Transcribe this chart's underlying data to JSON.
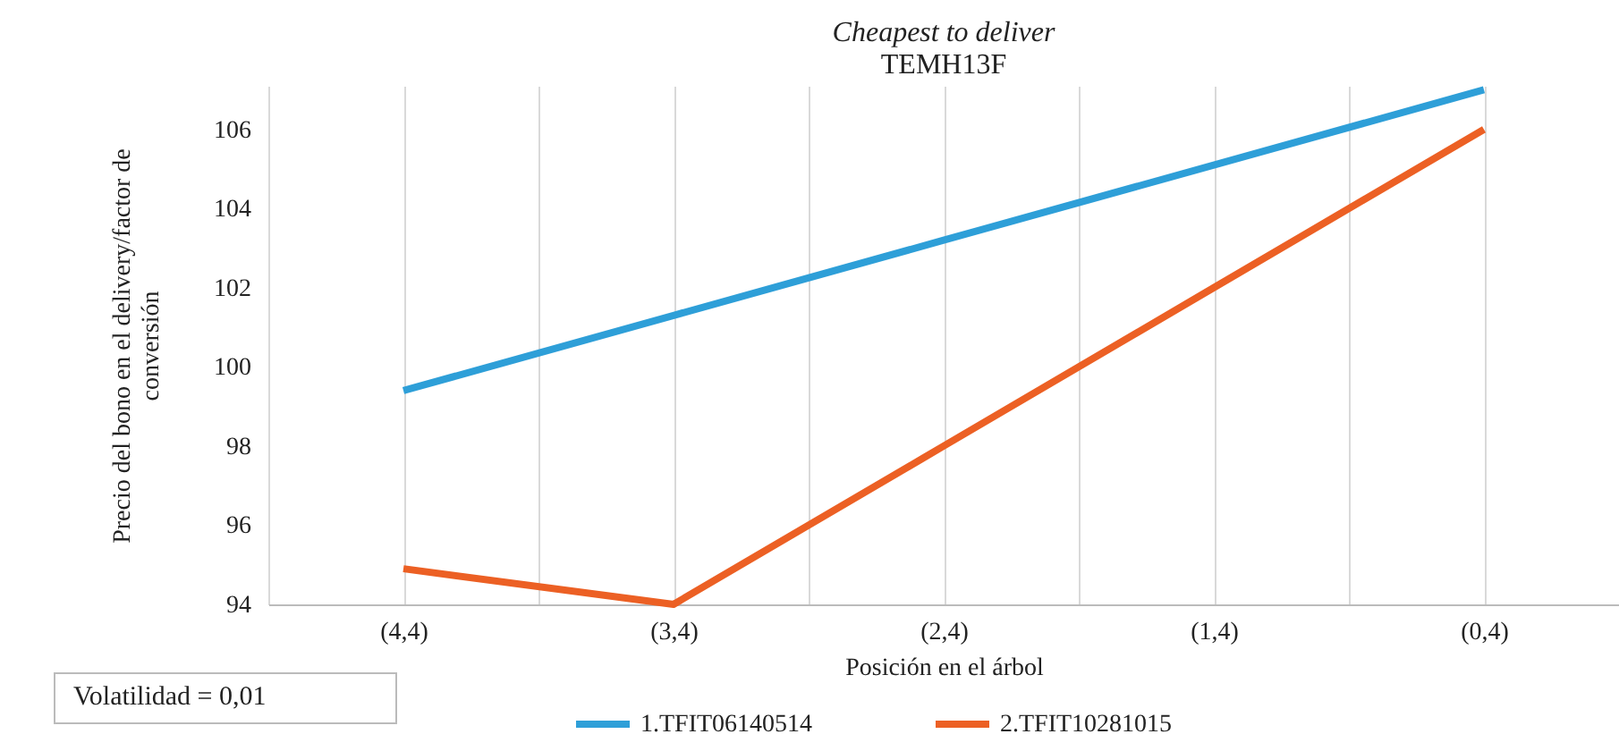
{
  "chart_data": {
    "type": "line",
    "title": "Cheapest to deliver",
    "subtitle": "TEMH13F",
    "xlabel": "Posición en el árbol",
    "ylabel": "Precio del bono en el delivery/factor de conversión",
    "categories": [
      "(4,4)",
      "(3,4)",
      "(2,4)",
      "(1,4)",
      "(0,4)"
    ],
    "series": [
      {
        "name": "1.TFIT06140514",
        "color": "#2e9fd8",
        "values": [
          99.4,
          101.3,
          103.2,
          105.1,
          107.0
        ]
      },
      {
        "name": "2.TFIT10281015",
        "color": "#ec6024",
        "values": [
          94.9,
          94.0,
          98.0,
          102.0,
          106.0
        ]
      }
    ],
    "ylim": [
      94,
      107.1
    ],
    "yticks": [
      94,
      96,
      98,
      100,
      102,
      104,
      106
    ],
    "grid": "x",
    "legend": "bottom",
    "marker": "none",
    "line_style": "solid",
    "annotations": [
      "Volatilidad = 0,01"
    ]
  }
}
